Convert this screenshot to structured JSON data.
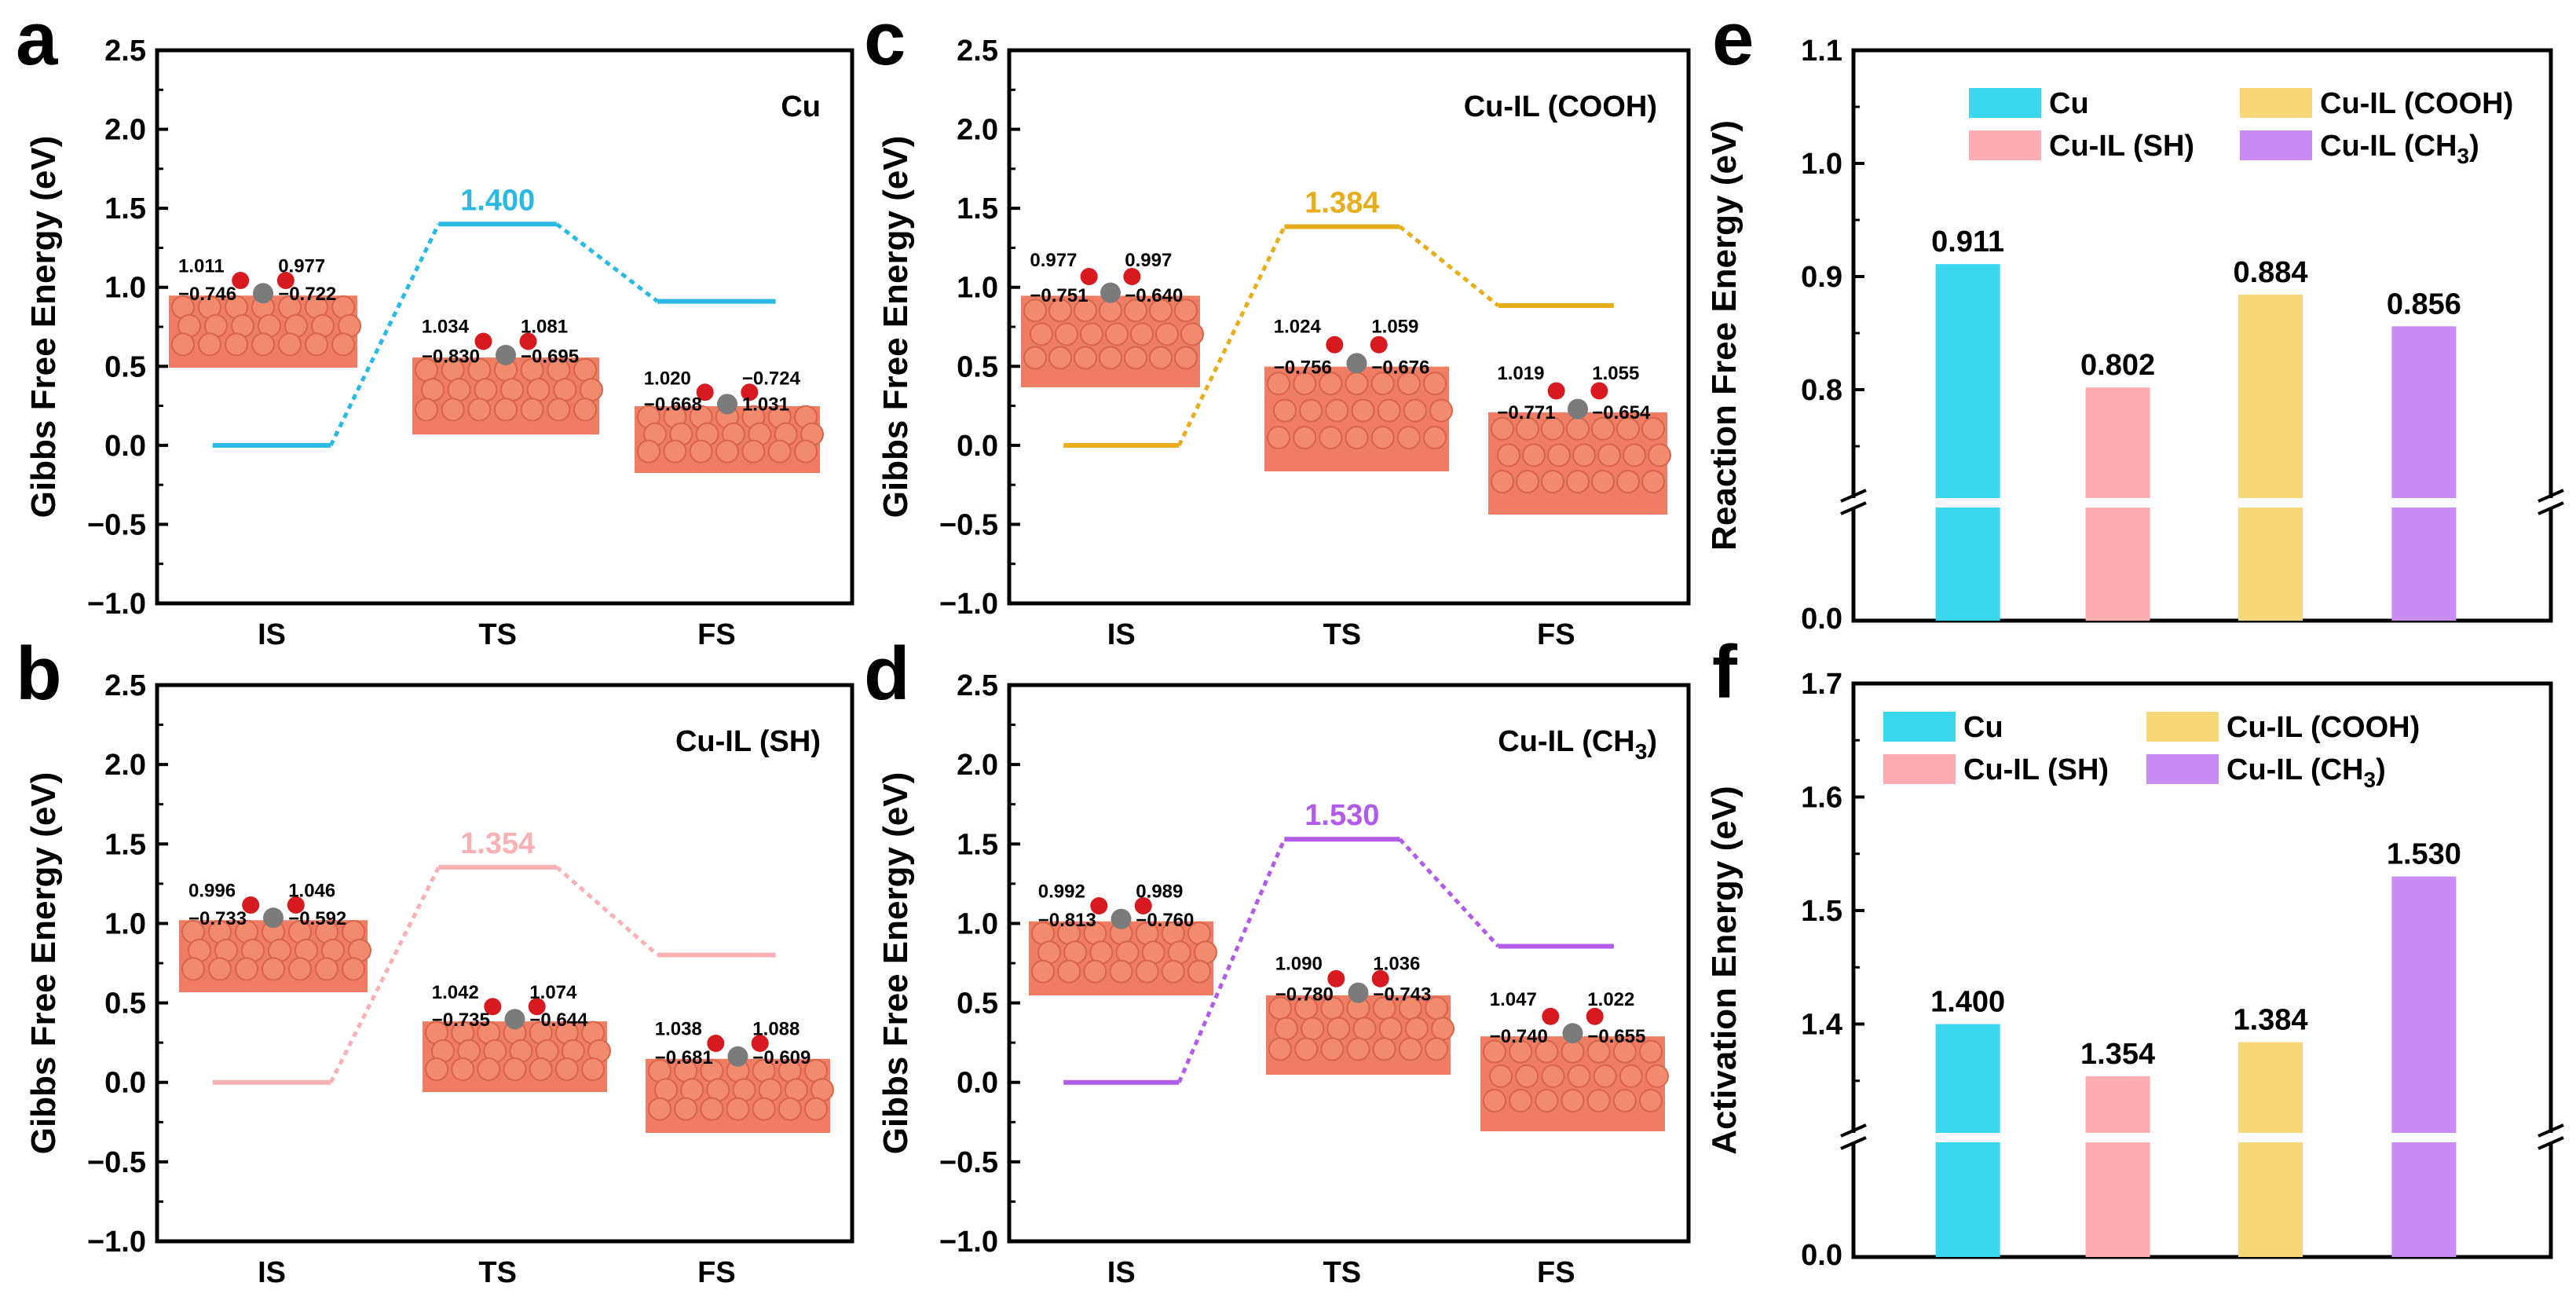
{
  "chart_data": [
    {
      "panel": "a",
      "type": "line",
      "title": "Cu",
      "ylabel": "Gibbs Free Energy (eV)",
      "categories": [
        "IS",
        "TS",
        "FS"
      ],
      "values": [
        0.0,
        1.4,
        0.911
      ],
      "ts_label": "1.400",
      "ylim": [
        -1.0,
        2.5
      ],
      "yticks": [
        "−1.0",
        "−0.5",
        "0.0",
        "0.5",
        "1.0",
        "1.5",
        "2.0",
        "2.5"
      ],
      "color": "#2ab9e3",
      "structures": [
        {
          "state": "IS",
          "labels": [
            "1.011",
            "0.977",
            "−0.746",
            "−0.722"
          ]
        },
        {
          "state": "TS",
          "labels": [
            "1.034",
            "1.081",
            "−0.830",
            "−0.695"
          ]
        },
        {
          "state": "FS",
          "labels": [
            "1.020",
            "−0.724",
            "−0.668",
            "1.031"
          ]
        }
      ]
    },
    {
      "panel": "b",
      "type": "line",
      "title": "Cu-IL (SH)",
      "ylabel": "Gibbs Free Energy (eV)",
      "categories": [
        "IS",
        "TS",
        "FS"
      ],
      "values": [
        0.0,
        1.354,
        0.802
      ],
      "ts_label": "1.354",
      "ylim": [
        -1.0,
        2.5
      ],
      "yticks": [
        "−1.0",
        "−0.5",
        "0.0",
        "0.5",
        "1.0",
        "1.5",
        "2.0",
        "2.5"
      ],
      "color": "#f9b1b4",
      "structures": [
        {
          "state": "IS",
          "labels": [
            "0.996",
            "1.046",
            "−0.733",
            "−0.592"
          ]
        },
        {
          "state": "TS",
          "labels": [
            "1.042",
            "1.074",
            "−0.735",
            "−0.644"
          ]
        },
        {
          "state": "FS",
          "labels": [
            "1.038",
            "1.088",
            "−0.681",
            "−0.609"
          ]
        }
      ]
    },
    {
      "panel": "c",
      "type": "line",
      "title": "Cu-IL (COOH)",
      "ylabel": "Gibbs Free Energy (eV)",
      "categories": [
        "IS",
        "TS",
        "FS"
      ],
      "values": [
        0.0,
        1.384,
        0.884
      ],
      "ts_label": "1.384",
      "ylim": [
        -1.0,
        2.5
      ],
      "yticks": [
        "−1.0",
        "−0.5",
        "0.0",
        "0.5",
        "1.0",
        "1.5",
        "2.0",
        "2.5"
      ],
      "color": "#e8ad1b",
      "structures": [
        {
          "state": "IS",
          "labels": [
            "0.977",
            "0.997",
            "−0.751",
            "−0.640"
          ]
        },
        {
          "state": "TS",
          "labels": [
            "1.024",
            "1.059",
            "−0.756",
            "−0.676"
          ]
        },
        {
          "state": "FS",
          "labels": [
            "1.019",
            "1.055",
            "−0.771",
            "−0.654"
          ]
        }
      ]
    },
    {
      "panel": "d",
      "type": "line",
      "title": "Cu-IL (CH",
      "title_sub": "3",
      "title_end": ")",
      "ylabel": "Gibbs Free Energy (eV)",
      "categories": [
        "IS",
        "TS",
        "FS"
      ],
      "values": [
        0.0,
        1.53,
        0.856
      ],
      "ts_label": "1.530",
      "ylim": [
        -1.0,
        2.5
      ],
      "yticks": [
        "−1.0",
        "−0.5",
        "0.0",
        "0.5",
        "1.0",
        "1.5",
        "2.0",
        "2.5"
      ],
      "color": "#b15bea",
      "structures": [
        {
          "state": "IS",
          "labels": [
            "0.992",
            "0.989",
            "−0.813",
            "−0.760"
          ]
        },
        {
          "state": "TS",
          "labels": [
            "1.090",
            "1.036",
            "−0.780",
            "−0.743"
          ]
        },
        {
          "state": "FS",
          "labels": [
            "1.047",
            "1.022",
            "−0.740",
            "−0.655"
          ]
        }
      ]
    },
    {
      "panel": "e",
      "type": "bar",
      "ylabel": "Reaction Free Energy (eV)",
      "categories": [
        "Cu",
        "Cu-IL (SH)",
        "Cu-IL (COOH)",
        "Cu-IL (CH3)"
      ],
      "values": [
        0.911,
        0.802,
        0.884,
        0.856
      ],
      "value_labels": [
        "0.911",
        "0.802",
        "0.884",
        "0.856"
      ],
      "ylim_upper": [
        0.7,
        1.1
      ],
      "yticks": [
        "0.0",
        "0.8",
        "0.9",
        "1.0",
        "1.1"
      ],
      "axis_break": true,
      "colors": [
        "#3dd6ef",
        "#feadb2",
        "#f7d879",
        "#c98cf3"
      ],
      "legend": [
        {
          "text": "Cu"
        },
        {
          "text": "Cu-IL (SH)"
        },
        {
          "text": "Cu-IL (COOH)"
        },
        {
          "text": "Cu-IL (CH",
          "sub": "3",
          "end": ")"
        }
      ]
    },
    {
      "panel": "f",
      "type": "bar",
      "ylabel": "Activation Energy (eV)",
      "categories": [
        "Cu",
        "Cu-IL (SH)",
        "Cu-IL (COOH)",
        "Cu-IL (CH3)"
      ],
      "values": [
        1.4,
        1.354,
        1.384,
        1.53
      ],
      "value_labels": [
        "1.400",
        "1.354",
        "1.384",
        "1.530"
      ],
      "ylim_upper": [
        1.3,
        1.7
      ],
      "yticks": [
        "0.0",
        "1.4",
        "1.5",
        "1.6",
        "1.7"
      ],
      "axis_break": true,
      "colors": [
        "#3dd6ef",
        "#feadb2",
        "#f7d879",
        "#c98cf3"
      ],
      "legend": [
        {
          "text": "Cu"
        },
        {
          "text": "Cu-IL (SH)"
        },
        {
          "text": "Cu-IL (COOH)"
        },
        {
          "text": "Cu-IL (CH",
          "sub": "3",
          "end": ")"
        }
      ]
    }
  ]
}
